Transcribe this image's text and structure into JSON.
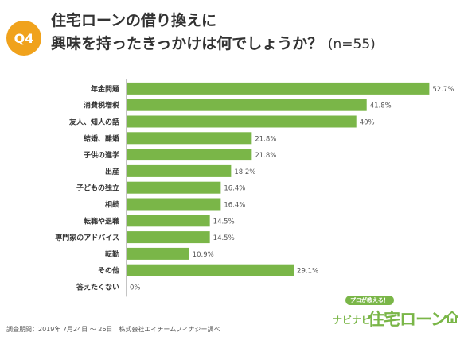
{
  "badge": "Q4",
  "title": {
    "line1": "住宅ローンの借り換えに",
    "line2": "興味を持ったきっかけは何でしょうか？",
    "n": "(n=55)"
  },
  "footer": {
    "note": "調査期間：2019年 7月24日 〜 26日　株式会社エイチームフィナジー調べ"
  },
  "logo": {
    "sub": "プロが教える！",
    "pre": "ナビナビ",
    "main": "住宅ローン"
  },
  "colors": {
    "bar": "#7ab648",
    "badge": "#f0a21c",
    "axis": "#888888"
  },
  "chart_data": {
    "type": "bar",
    "orientation": "horizontal",
    "categories": [
      "年金問題",
      "消費税増税",
      "友人、知人の話",
      "結婚、離婚",
      "子供の進学",
      "出産",
      "子どもの独立",
      "相続",
      "転職や退職",
      "専門家のアドバイス",
      "転勤",
      "その他",
      "答えたくない"
    ],
    "values": [
      52.7,
      41.8,
      40,
      21.8,
      21.8,
      18.2,
      16.4,
      16.4,
      14.5,
      14.5,
      10.9,
      29.1,
      0
    ],
    "value_labels": [
      "52.7%",
      "41.8%",
      "40%",
      "21.8%",
      "21.8%",
      "18.2%",
      "16.4%",
      "16.4%",
      "14.5%",
      "14.5%",
      "10.9%",
      "29.1%",
      "0%"
    ],
    "xlim": [
      0,
      55
    ],
    "grid": false,
    "legend": "none"
  }
}
